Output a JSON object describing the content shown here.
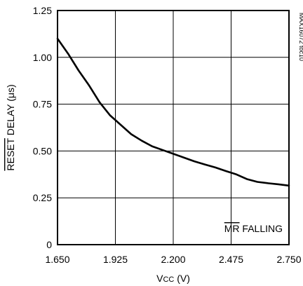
{
  "chart_data": {
    "type": "line",
    "xlabel": "VCC (V)",
    "ylabel": "RESET DELAY (μs)",
    "xlim": [
      1.65,
      2.75
    ],
    "ylim": [
      0,
      1.25
    ],
    "x_ticks": [
      "1.650",
      "1.925",
      "2.200",
      "2.475",
      "2.750"
    ],
    "y_ticks": [
      "0",
      "0.25",
      "0.50",
      "0.75",
      "1.00",
      "1.25"
    ],
    "grid": true,
    "annotation": "MR FALLING",
    "part_note": "MAX16072 toc10",
    "series": [
      {
        "x": [
          1.65,
          1.7,
          1.75,
          1.8,
          1.85,
          1.9,
          1.95,
          2.0,
          2.05,
          2.1,
          2.15,
          2.2,
          2.25,
          2.3,
          2.35,
          2.4,
          2.45,
          2.5,
          2.55,
          2.6,
          2.65,
          2.7,
          2.75
        ],
        "y": [
          1.1,
          1.02,
          0.93,
          0.85,
          0.76,
          0.69,
          0.64,
          0.59,
          0.555,
          0.525,
          0.505,
          0.485,
          0.465,
          0.445,
          0.428,
          0.412,
          0.393,
          0.375,
          0.35,
          0.335,
          0.328,
          0.322,
          0.315
        ]
      }
    ]
  }
}
